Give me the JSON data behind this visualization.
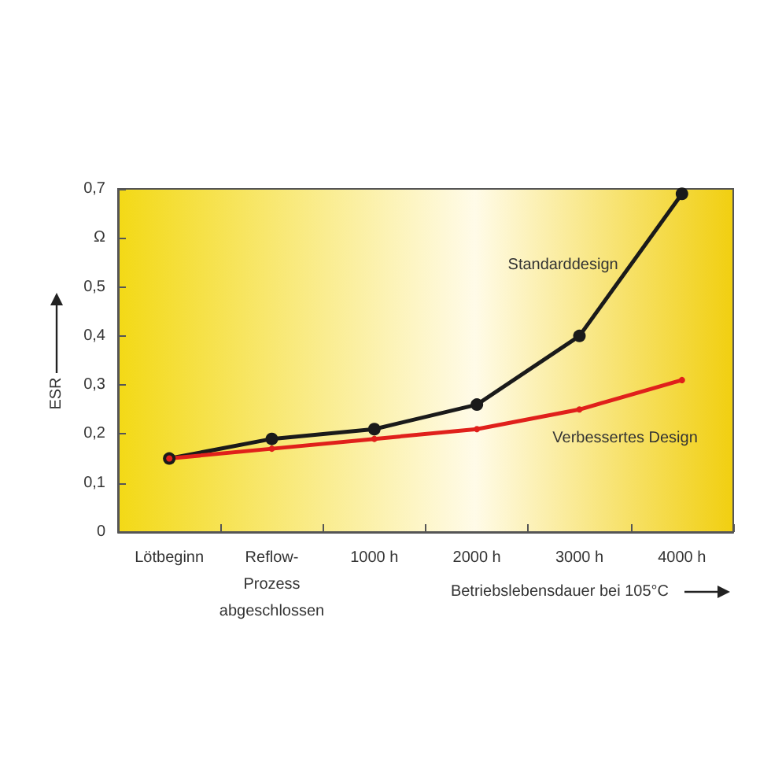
{
  "chart_data": {
    "type": "line",
    "categories": [
      "Lötbeginn",
      "Reflow-\nProzess\nabgeschlossen",
      "1000 h",
      "2000 h",
      "3000 h",
      "4000 h"
    ],
    "series": [
      {
        "name": "Standarddesign",
        "color": "#1a1a1a",
        "values": [
          0.15,
          0.19,
          0.21,
          0.26,
          0.4,
          0.69
        ]
      },
      {
        "name": "Verbessertes Design",
        "color": "#e0201b",
        "values": [
          0.15,
          0.17,
          0.19,
          0.21,
          0.25,
          0.31
        ]
      }
    ],
    "ylim": [
      0,
      0.7
    ],
    "yticks": [
      0,
      {
        "value": 0.1,
        "label": "0,1"
      },
      {
        "value": 0.2,
        "label": "0,2"
      },
      {
        "value": 0.3,
        "label": "0,3"
      },
      {
        "value": 0.4,
        "label": "0,4"
      },
      {
        "value": 0.5,
        "label": "0,5"
      },
      {
        "value": 0.6,
        "label": "Ω"
      },
      {
        "value": 0.7,
        "label": "0,7"
      }
    ],
    "xlabel": "Betriebslebensdauer bei 105°C",
    "ylabel": "ESR",
    "marker": "circle",
    "line_style": "solid",
    "grid": false,
    "legend": false
  }
}
